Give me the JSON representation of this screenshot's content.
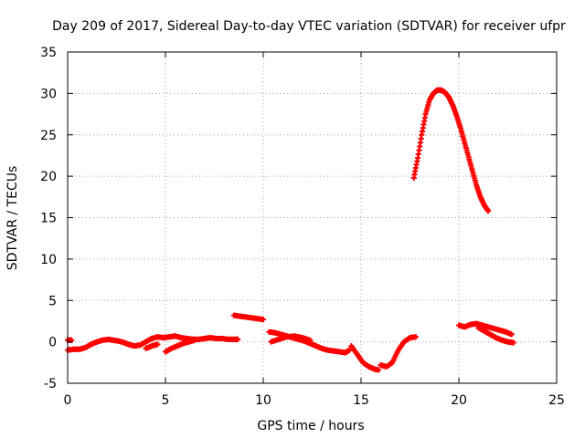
{
  "chart_data": {
    "type": "scatter",
    "title": "Day 209 of 2017, Sidereal Day-to-day VTEC variation (SDTVAR) for receiver ufpr",
    "xlabel": "GPS time / hours",
    "ylabel": "SDTVAR / TECUs",
    "xlim": [
      0,
      25
    ],
    "ylim": [
      -5,
      35
    ],
    "xticks": [
      0,
      5,
      10,
      15,
      20,
      25
    ],
    "yticks": [
      -5,
      0,
      5,
      10,
      15,
      20,
      25,
      30,
      35
    ],
    "xtick_labels": [
      "0",
      "5",
      "10",
      "15",
      "20",
      "25"
    ],
    "ytick_labels": [
      "-5",
      "0",
      "5",
      "10",
      "15",
      "20",
      "25",
      "30",
      "35"
    ],
    "grid": true,
    "marker": "+",
    "series": [
      {
        "name": "SDTVAR",
        "color": "#ff0000",
        "segments": [
          {
            "x": [
              0.0,
              0.3,
              0.6,
              0.9,
              1.2,
              1.5,
              1.8,
              2.1,
              2.3,
              2.6,
              2.9,
              3.1,
              3.4,
              3.7,
              4.0,
              4.3,
              4.6,
              4.9,
              5.2,
              5.5,
              5.8,
              6.1,
              6.4,
              6.7,
              7.0,
              7.3,
              7.6,
              7.9,
              8.2,
              8.5,
              8.7
            ],
            "y": [
              -1.0,
              -0.9,
              -0.9,
              -0.7,
              -0.3,
              0.0,
              0.2,
              0.3,
              0.2,
              0.1,
              -0.1,
              -0.3,
              -0.5,
              -0.4,
              0.0,
              0.4,
              0.6,
              0.5,
              0.6,
              0.7,
              0.5,
              0.4,
              0.3,
              0.3,
              0.4,
              0.5,
              0.4,
              0.4,
              0.3,
              0.3,
              0.3
            ]
          },
          {
            "x": [
              0.0,
              0.2
            ],
            "y": [
              0.2,
              0.2
            ]
          },
          {
            "x": [
              4.0,
              4.3,
              4.6
            ],
            "y": [
              -0.8,
              -0.5,
              -0.3
            ]
          },
          {
            "x": [
              5.0,
              5.3,
              5.6,
              5.9,
              6.2,
              6.5
            ],
            "y": [
              -1.2,
              -0.8,
              -0.5,
              -0.2,
              0.0,
              0.2
            ]
          },
          {
            "x": [
              8.5,
              8.8,
              9.1,
              9.4,
              9.7,
              10.0
            ],
            "y": [
              3.2,
              3.1,
              3.0,
              2.9,
              2.8,
              2.7
            ]
          },
          {
            "x": [
              10.3,
              10.6,
              10.9,
              11.2,
              11.5,
              11.8,
              12.1,
              12.4,
              12.7,
              13.0,
              13.3,
              13.6,
              13.9,
              14.2,
              14.4
            ],
            "y": [
              1.2,
              1.1,
              0.9,
              0.7,
              0.5,
              0.3,
              0.1,
              -0.2,
              -0.5,
              -0.8,
              -1.0,
              -1.1,
              -1.2,
              -1.3,
              -1.0
            ]
          },
          {
            "x": [
              10.4,
              10.8,
              11.2,
              11.6,
              12.0,
              12.4
            ],
            "y": [
              0.0,
              0.3,
              0.6,
              0.7,
              0.5,
              0.2
            ]
          },
          {
            "x": [
              14.5,
              14.8,
              15.1,
              15.4,
              15.7,
              15.9
            ],
            "y": [
              -0.5,
              -1.5,
              -2.5,
              -3.0,
              -3.3,
              -3.4
            ]
          },
          {
            "x": [
              16.0,
              16.3,
              16.6,
              16.9,
              17.2,
              17.5,
              17.8
            ],
            "y": [
              -2.8,
              -3.0,
              -2.5,
              -1.0,
              0.0,
              0.5,
              0.6
            ]
          },
          {
            "x": [
              17.7,
              17.9,
              18.1,
              18.3,
              18.5,
              18.7,
              18.9,
              19.1,
              19.3,
              19.5,
              19.7,
              19.9,
              20.1,
              20.3,
              20.5,
              20.7,
              20.9,
              21.1,
              21.3,
              21.5
            ],
            "y": [
              19.8,
              22.2,
              25.0,
              27.5,
              29.2,
              30.0,
              30.4,
              30.4,
              30.1,
              29.5,
              28.5,
              27.2,
              25.7,
              24.0,
              22.3,
              20.6,
              18.9,
              17.5,
              16.5,
              15.8
            ]
          },
          {
            "x": [
              20.0,
              20.3,
              20.6,
              20.9,
              21.2,
              21.5,
              21.8,
              22.1,
              22.4,
              22.7
            ],
            "y": [
              2.0,
              1.8,
              2.1,
              2.2,
              2.0,
              1.8,
              1.6,
              1.4,
              1.2,
              0.9
            ]
          },
          {
            "x": [
              21.0,
              21.3,
              21.6,
              21.9,
              22.2,
              22.5,
              22.8
            ],
            "y": [
              1.7,
              1.3,
              0.9,
              0.5,
              0.2,
              0.0,
              -0.1
            ]
          }
        ]
      }
    ]
  }
}
